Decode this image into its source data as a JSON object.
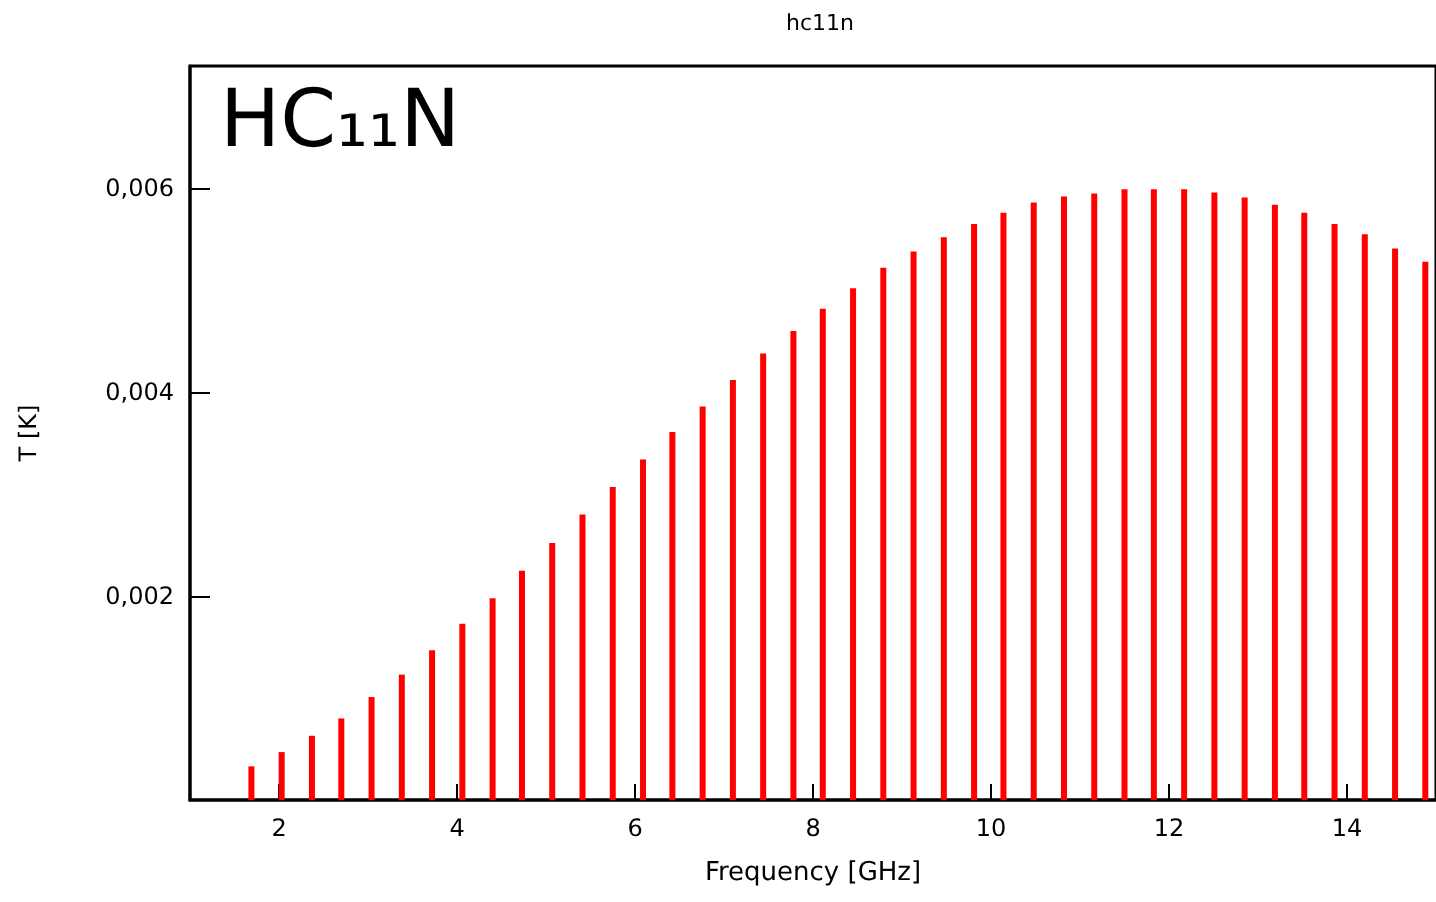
{
  "chart_data": {
    "type": "bar",
    "title": "hc11n",
    "xlabel": "Frequency [GHz]",
    "ylabel": "T [K]",
    "annotations": [
      "HC₁₁N"
    ],
    "x": [
      1.69,
      2.03,
      2.37,
      2.7,
      3.04,
      3.38,
      3.72,
      4.06,
      4.4,
      4.73,
      5.07,
      5.41,
      5.75,
      6.09,
      6.42,
      6.76,
      7.1,
      7.44,
      7.78,
      8.11,
      8.45,
      8.79,
      9.13,
      9.47,
      9.81,
      10.14,
      10.48,
      10.82,
      11.16,
      11.5,
      11.83,
      12.17,
      12.51,
      12.85,
      13.19,
      13.52,
      13.86,
      14.2,
      14.54,
      14.88
    ],
    "series": [
      {
        "color": "#ff0000",
        "values": [
          0.00033,
          0.00047,
          0.00063,
          0.0008,
          0.00101,
          0.00123,
          0.00147,
          0.00173,
          0.00198,
          0.00225,
          0.00252,
          0.0028,
          0.00307,
          0.00334,
          0.00361,
          0.00386,
          0.00412,
          0.00438,
          0.0046,
          0.00482,
          0.00502,
          0.00522,
          0.00538,
          0.00552,
          0.00565,
          0.00576,
          0.00586,
          0.00592,
          0.00595,
          0.00599,
          0.00599,
          0.00599,
          0.00596,
          0.00591,
          0.00584,
          0.00576,
          0.00565,
          0.00555,
          0.00541,
          0.00528
        ]
      }
    ],
    "xlim": [
      1,
      15
    ],
    "xticks": [
      2,
      4,
      6,
      8,
      10,
      12,
      14
    ],
    "ylim": [
      0,
      0.0072
    ],
    "yticks": [
      {
        "value": 0.002,
        "label": "0,002"
      },
      {
        "value": 0.004,
        "label": "0,004"
      },
      {
        "value": 0.006,
        "label": "0,006"
      }
    ],
    "grid": false
  }
}
